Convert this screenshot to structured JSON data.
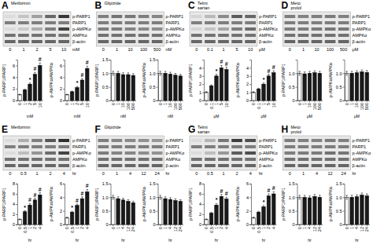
{
  "chart_data": [
    {
      "type": "heatmap",
      "title": "A",
      "subtitle": "Metformin",
      "categories": [
        "0",
        "1",
        "2",
        "5",
        "10"
      ],
      "x_label": "mM",
      "rows": [
        "p-PARP1",
        "PARP1",
        "p-AMPKα",
        "AMPKα",
        "β-actin"
      ],
      "cells": [
        [
          0.15,
          0.25,
          0.4,
          0.65,
          0.85
        ],
        [
          0.55,
          0.55,
          0.55,
          0.55,
          0.55
        ],
        [
          0.15,
          0.22,
          0.35,
          0.55,
          0.8
        ],
        [
          0.6,
          0.6,
          0.6,
          0.6,
          0.6
        ],
        [
          0.65,
          0.65,
          0.65,
          0.65,
          0.65
        ]
      ]
    },
    {
      "type": "bar",
      "categories": [
        "0",
        "1",
        "2",
        "5",
        "10"
      ],
      "x_label": "mM",
      "y_label": "p-PARP1/PARP1",
      "values": [
        1.0,
        1.8,
        2.8,
        4.5,
        6.0
      ],
      "errors": [
        0.07,
        0.126,
        0.196,
        0.315,
        0.42
      ],
      "colors": [
        "#ffffff",
        "#1a1a1a",
        "#1a1a1a",
        "#1a1a1a",
        "#1a1a1a"
      ],
      "ylim": [
        0,
        7
      ],
      "yticks": [
        0,
        2,
        4,
        6
      ],
      "annotations": [
        null,
        null,
        "*",
        "#",
        "#"
      ],
      "grid": false
    },
    {
      "type": "bar",
      "categories": [
        "0",
        "1",
        "2",
        "5",
        "10"
      ],
      "x_label": "mM",
      "y_label": "p-AMPKα/AMPKα",
      "values": [
        1.0,
        1.5,
        2.2,
        3.5,
        5.5
      ],
      "errors": [
        0.07,
        0.105,
        0.154,
        0.245,
        0.385
      ],
      "colors": [
        "#ffffff",
        "#1a1a1a",
        "#1a1a1a",
        "#1a1a1a",
        "#1a1a1a"
      ],
      "ylim": [
        0,
        7
      ],
      "yticks": [
        0,
        2,
        4,
        6
      ],
      "annotations": [
        null,
        null,
        "*",
        "#",
        "#"
      ],
      "grid": false
    },
    {
      "type": "heatmap",
      "title": "B",
      "subtitle": "Glipizide",
      "categories": [
        "0",
        "1",
        "10",
        "100",
        "500"
      ],
      "x_label": "nM",
      "rows": [
        "p-PARP1",
        "PARP1",
        "p-AMPKα",
        "AMPKα",
        "β-actin"
      ],
      "cells": [
        [
          0.55,
          0.6,
          0.58,
          0.55,
          0.52
        ],
        [
          0.55,
          0.55,
          0.55,
          0.55,
          0.55
        ],
        [
          0.55,
          0.55,
          0.52,
          0.5,
          0.48
        ],
        [
          0.6,
          0.6,
          0.6,
          0.6,
          0.6
        ],
        [
          0.65,
          0.65,
          0.65,
          0.65,
          0.65
        ]
      ]
    },
    {
      "type": "bar",
      "categories": [
        "0",
        "1",
        "10",
        "100",
        "500"
      ],
      "x_label": "nM",
      "y_label": "p-PARP1/PARP1",
      "values": [
        1.0,
        1.0,
        0.95,
        0.95,
        0.92
      ],
      "errors": [
        0.07,
        0.07,
        0.0665,
        0.0665,
        0.0644
      ],
      "colors": [
        "#ffffff",
        "#1a1a1a",
        "#1a1a1a",
        "#1a1a1a",
        "#1a1a1a"
      ],
      "ylim": [
        0,
        1.5
      ],
      "yticks": [
        0,
        0.5,
        {
          "value": 1,
          "label": "1.0"
        },
        1.5
      ],
      "grid": false
    },
    {
      "type": "bar",
      "categories": [
        "0",
        "1",
        "10",
        "100",
        "500"
      ],
      "x_label": "nM",
      "y_label": "p-AMPKα/AMPKα",
      "values": [
        1.0,
        1.0,
        0.97,
        0.93,
        0.9
      ],
      "errors": [
        0.07,
        0.07,
        0.0679,
        0.0651,
        0.063
      ],
      "colors": [
        "#ffffff",
        "#1a1a1a",
        "#1a1a1a",
        "#1a1a1a",
        "#1a1a1a"
      ],
      "ylim": [
        0,
        1.5
      ],
      "yticks": [
        0,
        0.5,
        {
          "value": 1,
          "label": "1.0"
        },
        1.5
      ],
      "grid": false
    },
    {
      "type": "heatmap",
      "title": "C",
      "subtitle": "Telmi\nsartan",
      "categories": [
        "0",
        "0.1",
        "1",
        "5",
        "10"
      ],
      "x_label": "μM",
      "rows": [
        "p-PARP1",
        "PARP1",
        "p-AMPKα",
        "AMPKα",
        "β-actin"
      ],
      "cells": [
        [
          0.18,
          0.3,
          0.5,
          0.7,
          0.65
        ],
        [
          0.55,
          0.55,
          0.55,
          0.55,
          0.55
        ],
        [
          0.18,
          0.25,
          0.38,
          0.55,
          0.62
        ],
        [
          0.6,
          0.6,
          0.6,
          0.6,
          0.6
        ],
        [
          0.65,
          0.65,
          0.65,
          0.65,
          0.65
        ]
      ]
    },
    {
      "type": "bar",
      "categories": [
        "0",
        "0.1",
        "1",
        "5",
        "10"
      ],
      "x_label": "μM",
      "y_label": "p-PARP1/PARP1",
      "values": [
        1.0,
        1.8,
        3.0,
        4.0,
        3.8
      ],
      "errors": [
        0.07,
        0.126,
        0.21,
        0.28,
        0.266
      ],
      "colors": [
        "#ffffff",
        "#1a1a1a",
        "#1a1a1a",
        "#1a1a1a",
        "#1a1a1a"
      ],
      "ylim": [
        0,
        5
      ],
      "yticks": [
        0,
        1,
        2,
        3,
        4
      ],
      "annotations": [
        null,
        null,
        "*",
        "#",
        "#"
      ],
      "grid": false
    },
    {
      "type": "bar",
      "categories": [
        "0",
        "0.1",
        "1",
        "5",
        "10"
      ],
      "x_label": "μM",
      "y_label": "p-AMPKα/AMPKα",
      "values": [
        1.0,
        1.4,
        2.0,
        3.0,
        3.4
      ],
      "errors": [
        0.07,
        0.098,
        0.14,
        0.21,
        0.238
      ],
      "colors": [
        "#ffffff",
        "#1a1a1a",
        "#1a1a1a",
        "#1a1a1a",
        "#1a1a1a"
      ],
      "ylim": [
        0,
        5
      ],
      "yticks": [
        0,
        1,
        2,
        3,
        4
      ],
      "annotations": [
        null,
        null,
        "*",
        "#",
        "#"
      ],
      "grid": false
    },
    {
      "type": "heatmap",
      "title": "D",
      "subtitle": "Meto\nprolol",
      "categories": [
        "0",
        "1",
        "10",
        "100",
        "500"
      ],
      "x_label": "μM",
      "rows": [
        "p-PARP1",
        "PARP1",
        "p-AMPKα",
        "AMPKα",
        "β-actin"
      ],
      "cells": [
        [
          0.55,
          0.53,
          0.55,
          0.56,
          0.54
        ],
        [
          0.55,
          0.55,
          0.55,
          0.55,
          0.55
        ],
        [
          0.55,
          0.55,
          0.56,
          0.58,
          0.57
        ],
        [
          0.6,
          0.6,
          0.6,
          0.6,
          0.6
        ],
        [
          0.65,
          0.65,
          0.65,
          0.65,
          0.65
        ]
      ]
    },
    {
      "type": "bar",
      "categories": [
        "0",
        "1",
        "10",
        "100",
        "500"
      ],
      "x_label": "μM",
      "y_label": "p-PARP1/PARP1",
      "values": [
        1.0,
        0.98,
        1.0,
        1.02,
        1.0
      ],
      "errors": [
        0.07,
        0.0686,
        0.07,
        0.0714,
        0.07
      ],
      "colors": [
        "#ffffff",
        "#1a1a1a",
        "#1a1a1a",
        "#1a1a1a",
        "#1a1a1a"
      ],
      "ylim": [
        0,
        1.5
      ],
      "yticks": [
        0,
        0.5,
        {
          "value": 1,
          "label": "1.0"
        }
      ],
      "grid": false
    },
    {
      "type": "bar",
      "categories": [
        "0",
        "1",
        "10",
        "100",
        "500"
      ],
      "x_label": "μM",
      "y_label": "p-AMPKα/AMPKα",
      "values": [
        1.0,
        1.0,
        1.02,
        1.05,
        1.03
      ],
      "errors": [
        0.07,
        0.07,
        0.0714,
        0.0735,
        0.0721
      ],
      "colors": [
        "#ffffff",
        "#1a1a1a",
        "#1a1a1a",
        "#1a1a1a",
        "#1a1a1a"
      ],
      "ylim": [
        0,
        1.5
      ],
      "yticks": [
        0,
        0.5,
        {
          "value": 1,
          "label": "1.0"
        }
      ],
      "grid": false
    },
    {
      "type": "heatmap",
      "title": "E",
      "subtitle": "Metformin",
      "categories": [
        "0",
        "0.5",
        "1",
        "2",
        "4"
      ],
      "x_label": "hr",
      "rows": [
        "p-PARP1",
        "PARP1",
        "p-AMPKα",
        "AMPKα",
        "β-actin"
      ],
      "cells": [
        [
          0.15,
          0.35,
          0.55,
          0.72,
          0.88
        ],
        [
          0.55,
          0.55,
          0.55,
          0.55,
          0.55
        ],
        [
          0.15,
          0.28,
          0.45,
          0.62,
          0.8
        ],
        [
          0.6,
          0.6,
          0.6,
          0.6,
          0.6
        ],
        [
          0.65,
          0.65,
          0.65,
          0.65,
          0.65
        ]
      ]
    },
    {
      "type": "bar",
      "categories": [
        "0",
        "0.5",
        "1",
        "2",
        "4"
      ],
      "x_label": "hr",
      "y_label": "p-PARP1/PARP1",
      "values": [
        1.0,
        2.5,
        3.8,
        4.8,
        5.8
      ],
      "errors": [
        0.07,
        0.175,
        0.266,
        0.336,
        0.406
      ],
      "colors": [
        "#ffffff",
        "#1a1a1a",
        "#1a1a1a",
        "#1a1a1a",
        "#1a1a1a"
      ],
      "ylim": [
        0,
        8
      ],
      "yticks": [
        0,
        2,
        4,
        6,
        8
      ],
      "annotations": [
        null,
        "*",
        "#",
        "#",
        "#"
      ],
      "grid": false
    },
    {
      "type": "bar",
      "categories": [
        "0",
        "0.5",
        "1",
        "2",
        "4"
      ],
      "x_label": "hr",
      "y_label": "p-AMPKα/AMPKα",
      "values": [
        1.0,
        1.8,
        2.8,
        3.8,
        4.8
      ],
      "errors": [
        0.07,
        0.126,
        0.196,
        0.266,
        0.336
      ],
      "colors": [
        "#ffffff",
        "#1a1a1a",
        "#1a1a1a",
        "#1a1a1a",
        "#1a1a1a"
      ],
      "ylim": [
        0,
        6
      ],
      "yticks": [
        0,
        2,
        4,
        6
      ],
      "annotations": [
        null,
        "*",
        "#",
        "#",
        "#"
      ],
      "grid": false
    },
    {
      "type": "heatmap",
      "title": "F",
      "subtitle": "Glipizide",
      "categories": [
        "0",
        "1",
        "4",
        "12",
        "24"
      ],
      "x_label": "hr",
      "rows": [
        "p-PARP1",
        "PARP1",
        "p-AMPKα",
        "AMPKα",
        "β-actin"
      ],
      "cells": [
        [
          0.55,
          0.52,
          0.5,
          0.47,
          0.44
        ],
        [
          0.55,
          0.55,
          0.55,
          0.55,
          0.55
        ],
        [
          0.55,
          0.52,
          0.51,
          0.48,
          0.46
        ],
        [
          0.6,
          0.6,
          0.6,
          0.6,
          0.6
        ],
        [
          0.65,
          0.65,
          0.65,
          0.65,
          0.65
        ]
      ]
    },
    {
      "type": "bar",
      "categories": [
        "0",
        "1",
        "4",
        "12",
        "24"
      ],
      "x_label": "hr",
      "y_label": "p-PARP1/PARP1",
      "values": [
        1.0,
        0.95,
        0.9,
        0.85,
        0.8
      ],
      "errors": [
        0.07,
        0.0665,
        0.063,
        0.0595,
        0.056
      ],
      "colors": [
        "#ffffff",
        "#1a1a1a",
        "#1a1a1a",
        "#1a1a1a",
        "#1a1a1a"
      ],
      "ylim": [
        0,
        1.5
      ],
      "yticks": [
        0,
        0.5,
        {
          "value": 1,
          "label": "1.0"
        },
        1.5
      ],
      "grid": false
    },
    {
      "type": "bar",
      "categories": [
        "0",
        "1",
        "4",
        "12",
        "24"
      ],
      "x_label": "hr",
      "y_label": "p-AMPKα/AMPKα",
      "values": [
        1.0,
        0.95,
        0.92,
        0.88,
        0.85
      ],
      "errors": [
        0.07,
        0.0665,
        0.0644,
        0.0616,
        0.0595
      ],
      "colors": [
        "#ffffff",
        "#1a1a1a",
        "#1a1a1a",
        "#1a1a1a",
        "#1a1a1a"
      ],
      "ylim": [
        0,
        1.5
      ],
      "yticks": [
        0,
        0.5,
        {
          "value": 1,
          "label": "1.0"
        },
        1.5
      ],
      "grid": false
    },
    {
      "type": "heatmap",
      "title": "G",
      "subtitle": "Telmi\nsartan",
      "categories": [
        "0",
        "0.5",
        "1",
        "2",
        "4"
      ],
      "x_label": "hr",
      "rows": [
        "p-PARP1",
        "PARP1",
        "p-AMPKα",
        "AMPKα",
        "β-actin"
      ],
      "cells": [
        [
          0.15,
          0.32,
          0.58,
          0.82,
          0.75
        ],
        [
          0.55,
          0.55,
          0.55,
          0.55,
          0.55
        ],
        [
          0.15,
          0.28,
          0.44,
          0.68,
          0.75
        ],
        [
          0.6,
          0.6,
          0.6,
          0.6,
          0.6
        ],
        [
          0.65,
          0.65,
          0.65,
          0.65,
          0.65
        ]
      ]
    },
    {
      "type": "bar",
      "categories": [
        "0",
        "0.5",
        "1",
        "2",
        "4"
      ],
      "x_label": "hr",
      "y_label": "p-PARP1/PARP1",
      "values": [
        1.0,
        2.2,
        3.8,
        5.5,
        5.0
      ],
      "errors": [
        0.07,
        0.154,
        0.266,
        0.385,
        0.35
      ],
      "colors": [
        "#ffffff",
        "#1a1a1a",
        "#1a1a1a",
        "#1a1a1a",
        "#1a1a1a"
      ],
      "ylim": [
        0,
        8
      ],
      "yticks": [
        0,
        2,
        4,
        6,
        8
      ],
      "annotations": [
        null,
        null,
        "*",
        "#",
        "#"
      ],
      "grid": false
    },
    {
      "type": "bar",
      "categories": [
        "0",
        "0.5",
        "1",
        "2",
        "4"
      ],
      "x_label": "hr",
      "y_label": "p-AMPKα/AMPKα",
      "values": [
        1.0,
        1.8,
        2.6,
        4.2,
        4.5
      ],
      "errors": [
        0.07,
        0.126,
        0.182,
        0.294,
        0.315
      ],
      "colors": [
        "#ffffff",
        "#1a1a1a",
        "#1a1a1a",
        "#1a1a1a",
        "#1a1a1a"
      ],
      "ylim": [
        0,
        6
      ],
      "yticks": [
        0,
        2,
        4,
        6
      ],
      "annotations": [
        null,
        null,
        "*",
        "#",
        "#"
      ],
      "grid": false
    },
    {
      "type": "heatmap",
      "title": "H",
      "subtitle": "Meto\nprolol",
      "categories": [
        "0",
        "1",
        "4",
        "12",
        "24"
      ],
      "x_label": "hr",
      "rows": [
        "p-PARP1",
        "PARP1",
        "p-AMPKα",
        "AMPKα",
        "β-actin"
      ],
      "cells": [
        [
          0.55,
          0.54,
          0.53,
          0.56,
          0.54
        ],
        [
          0.55,
          0.55,
          0.55,
          0.55,
          0.55
        ],
        [
          0.55,
          0.55,
          0.56,
          0.6,
          0.58
        ],
        [
          0.6,
          0.6,
          0.6,
          0.6,
          0.6
        ],
        [
          0.65,
          0.65,
          0.65,
          0.65,
          0.65
        ]
      ]
    },
    {
      "type": "bar",
      "categories": [
        "0",
        "1",
        "4",
        "12",
        "24"
      ],
      "x_label": "hr",
      "y_label": "p-PARP1/PARP1",
      "values": [
        1.0,
        1.0,
        0.98,
        1.03,
        1.0
      ],
      "errors": [
        0.07,
        0.07,
        0.0686,
        0.0721,
        0.07
      ],
      "colors": [
        "#ffffff",
        "#1a1a1a",
        "#1a1a1a",
        "#1a1a1a",
        "#1a1a1a"
      ],
      "ylim": [
        0,
        1.5
      ],
      "yticks": [
        0,
        0.5,
        {
          "value": 1,
          "label": "1.0"
        },
        1.5
      ],
      "grid": false
    },
    {
      "type": "bar",
      "categories": [
        "0",
        "1",
        "4",
        "12",
        "24"
      ],
      "x_label": "hr",
      "y_label": "p-AMPKα/AMPKα",
      "values": [
        1.0,
        1.0,
        1.02,
        1.08,
        1.05
      ],
      "errors": [
        0.07,
        0.07,
        0.0714,
        0.0756,
        0.0735
      ],
      "colors": [
        "#ffffff",
        "#1a1a1a",
        "#1a1a1a",
        "#1a1a1a",
        "#1a1a1a"
      ],
      "ylim": [
        0,
        1.5
      ],
      "yticks": [
        0,
        0.5,
        {
          "value": 1,
          "label": "1.0"
        },
        1.5
      ],
      "grid": false
    }
  ]
}
